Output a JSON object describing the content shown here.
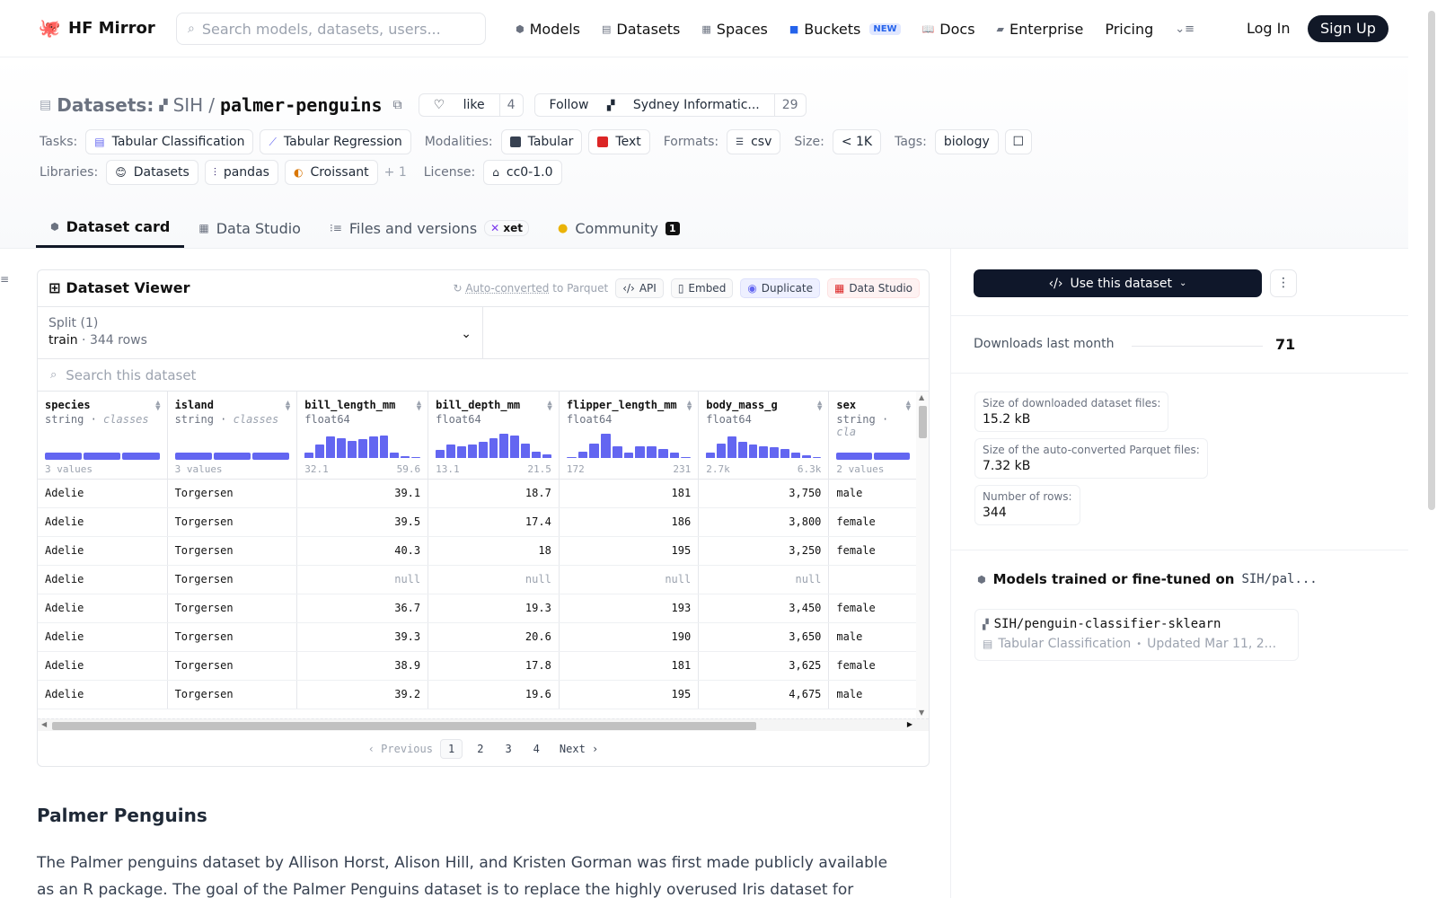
{
  "nav": {
    "brand": "HF Mirror",
    "search_placeholder": "Search models, datasets, users...",
    "links": [
      {
        "label": "Models",
        "icon": "cube-icon"
      },
      {
        "label": "Datasets",
        "icon": "database-icon"
      },
      {
        "label": "Spaces",
        "icon": "grid-icon"
      },
      {
        "label": "Buckets",
        "icon": "bucket-icon",
        "badge": "NEW"
      },
      {
        "label": "Docs",
        "icon": "book-icon"
      },
      {
        "label": "Enterprise",
        "icon": "building-icon"
      },
      {
        "label": "Pricing"
      }
    ],
    "login": "Log In",
    "signup": "Sign Up"
  },
  "header": {
    "section": "Datasets:",
    "owner": "SIH",
    "sep": "/",
    "repo": "palmer-penguins",
    "like_label": "like",
    "like_count": "4",
    "follow_label": "Follow",
    "follow_org": "Sydney Informatic...",
    "follow_count": "29",
    "tasks_label": "Tasks:",
    "tasks": [
      "Tabular Classification",
      "Tabular Regression"
    ],
    "modalities_label": "Modalities:",
    "modalities": [
      "Tabular",
      "Text"
    ],
    "formats_label": "Formats:",
    "formats": [
      "csv"
    ],
    "size_label": "Size:",
    "size": "< 1K",
    "tags_label": "Tags:",
    "tags": [
      "biology"
    ],
    "libraries_label": "Libraries:",
    "libraries": [
      "Datasets",
      "pandas",
      "Croissant"
    ],
    "libraries_more": "+ 1",
    "license_label": "License:",
    "license": "cc0-1.0"
  },
  "tabs": [
    {
      "label": "Dataset card",
      "active": true
    },
    {
      "label": "Data Studio"
    },
    {
      "label": "Files and versions",
      "badge": "xet"
    },
    {
      "label": "Community",
      "badge": "1"
    }
  ],
  "viewer": {
    "title": "Dataset Viewer",
    "auto_converted_a": "Auto-converted",
    "auto_converted_b": " to Parquet",
    "api": "API",
    "embed": "Embed",
    "duplicate": "Duplicate",
    "data_studio": "Data Studio",
    "split_label": "Split (1)",
    "split_name": "train",
    "split_dot": "·",
    "split_rows": "344 rows",
    "search_placeholder": "Search this dataset",
    "columns": [
      {
        "name": "species",
        "type": "string",
        "kind": "classes",
        "summary": "3 values"
      },
      {
        "name": "island",
        "type": "string",
        "kind": "classes",
        "summary": "3 values"
      },
      {
        "name": "bill_length_mm",
        "type": "float64",
        "min": "32.1",
        "max": "59.6",
        "hist": [
          0.2,
          0.5,
          0.8,
          0.75,
          0.65,
          0.7,
          0.8,
          0.85,
          0.2,
          0.08,
          0.05
        ]
      },
      {
        "name": "bill_depth_mm",
        "type": "float64",
        "min": "13.1",
        "max": "21.5",
        "hist": [
          0.3,
          0.5,
          0.45,
          0.5,
          0.6,
          0.75,
          0.9,
          0.85,
          0.55,
          0.25,
          0.15
        ]
      },
      {
        "name": "flipper_length_mm",
        "type": "float64",
        "min": "172",
        "max": "231",
        "hist": [
          0.05,
          0.25,
          0.55,
          0.9,
          0.45,
          0.2,
          0.45,
          0.45,
          0.35,
          0.2,
          0.05
        ]
      },
      {
        "name": "body_mass_g",
        "type": "float64",
        "min": "2.7k",
        "max": "6.3k",
        "hist": [
          0.2,
          0.55,
          0.8,
          0.6,
          0.5,
          0.45,
          0.4,
          0.35,
          0.2,
          0.1,
          0.05
        ]
      },
      {
        "name": "sex",
        "type": "string",
        "kind": "cla",
        "summary": "2 values"
      }
    ],
    "rows": [
      [
        "Adelie",
        "Torgersen",
        "39.1",
        "18.7",
        "181",
        "3,750",
        "male"
      ],
      [
        "Adelie",
        "Torgersen",
        "39.5",
        "17.4",
        "186",
        "3,800",
        "female"
      ],
      [
        "Adelie",
        "Torgersen",
        "40.3",
        "18",
        "195",
        "3,250",
        "female"
      ],
      [
        "Adelie",
        "Torgersen",
        "null",
        "null",
        "null",
        "null",
        ""
      ],
      [
        "Adelie",
        "Torgersen",
        "36.7",
        "19.3",
        "193",
        "3,450",
        "female"
      ],
      [
        "Adelie",
        "Torgersen",
        "39.3",
        "20.6",
        "190",
        "3,650",
        "male"
      ],
      [
        "Adelie",
        "Torgersen",
        "38.9",
        "17.8",
        "181",
        "3,625",
        "female"
      ],
      [
        "Adelie",
        "Torgersen",
        "39.2",
        "19.6",
        "195",
        "4,675",
        "male"
      ]
    ],
    "pager": {
      "prev": "Previous",
      "pages": [
        "1",
        "2",
        "3",
        "4"
      ],
      "current": "1",
      "next": "Next"
    }
  },
  "card": {
    "heading": "Palmer Penguins",
    "paragraph": "The Palmer penguins dataset by Allison Horst, Alison Hill, and Kristen Gorman was first made publicly available as an R package. The goal of the Palmer Penguins dataset is to replace the highly overused Iris dataset for"
  },
  "sidebar": {
    "use_dataset": "Use this dataset",
    "more": "⋮",
    "downloads_label": "Downloads last month",
    "downloads": "71",
    "stats": [
      {
        "k": "Size of downloaded dataset files:",
        "v": "15.2 kB"
      },
      {
        "k": "Size of the auto-converted Parquet files:",
        "v": "7.32 kB"
      },
      {
        "k": "Number of rows:",
        "v": "344"
      }
    ],
    "models_title": "Models trained or fine-tuned on",
    "models_ref": "SIH/pal...",
    "model_name": "SIH/penguin-classifier-sklearn",
    "model_task": "Tabular Classification",
    "model_bullet": "•",
    "model_updated": "Updated Mar 11, 2..."
  },
  "colors": {
    "accent": "#6366f1",
    "dark": "#111827"
  }
}
